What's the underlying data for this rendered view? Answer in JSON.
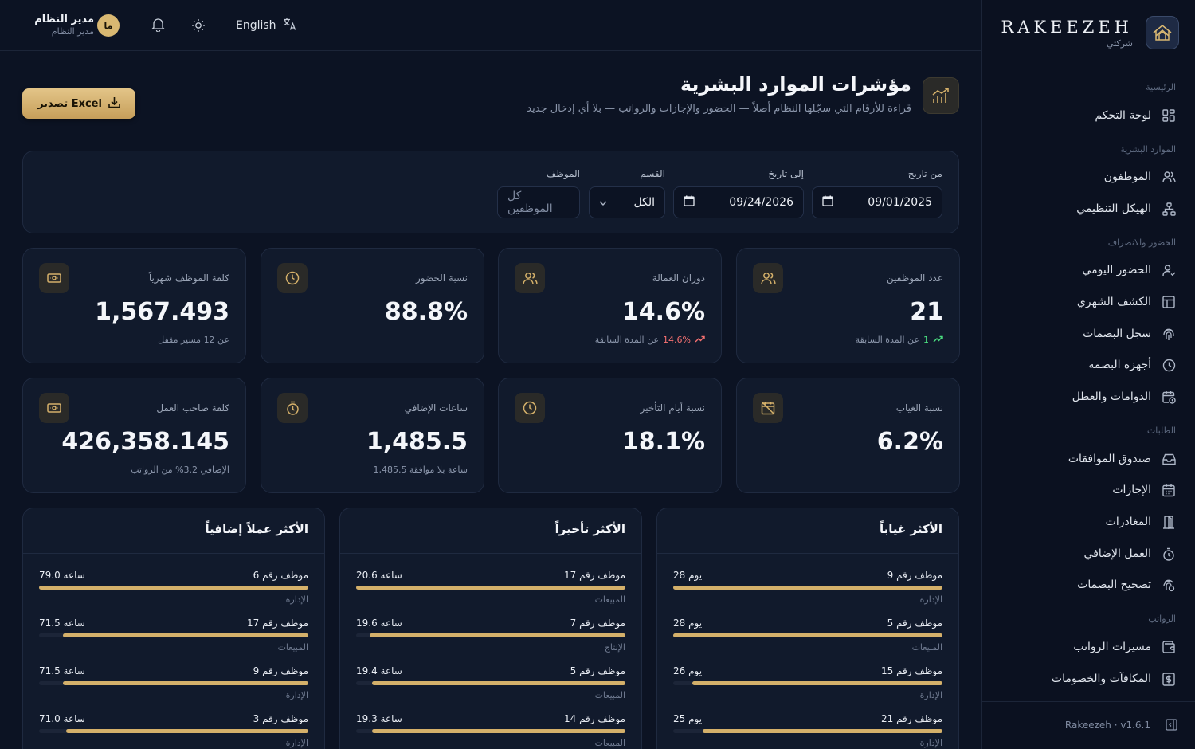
{
  "brand": {
    "name": "RAKEEZEH",
    "subtitle": "شركتي"
  },
  "sidebar": {
    "groups": [
      {
        "label": "الرئيسية"
      },
      {
        "label": "الموارد البشرية"
      },
      {
        "label": "الحضور والانصراف"
      },
      {
        "label": "الطلبات"
      },
      {
        "label": "الرواتب"
      }
    ],
    "items": [
      {
        "label": "لوحة التحكم",
        "icon": "dashboard-icon"
      },
      {
        "label": "الموظفون",
        "icon": "users-icon"
      },
      {
        "label": "الهيكل التنظيمي",
        "icon": "org-chart-icon"
      },
      {
        "label": "الحضور اليومي",
        "icon": "user-check-icon"
      },
      {
        "label": "الكشف الشهري",
        "icon": "table-icon"
      },
      {
        "label": "سجل البصمات",
        "icon": "fingerprint-icon"
      },
      {
        "label": "أجهزة البصمة",
        "icon": "clock-icon"
      },
      {
        "label": "الدوامات والعطل",
        "icon": "calendar-clock-icon"
      },
      {
        "label": "صندوق الموافقات",
        "icon": "inbox-icon"
      },
      {
        "label": "الإجازات",
        "icon": "calendar-icon"
      },
      {
        "label": "المغادرات",
        "icon": "door-icon"
      },
      {
        "label": "العمل الإضافي",
        "icon": "timer-icon"
      },
      {
        "label": "تصحيح البصمات",
        "icon": "fingerprint-fix-icon"
      },
      {
        "label": "مسيرات الرواتب",
        "icon": "wallet-icon"
      },
      {
        "label": "المكافآت والخصومات",
        "icon": "dollar-icon"
      }
    ],
    "version": "Rakeezeh · v1.6.1"
  },
  "topbar": {
    "language": "English",
    "user_name": "مدير النظام",
    "user_role": "مدير النظام",
    "avatar_initials": "ما"
  },
  "page": {
    "title": "مؤشرات الموارد البشرية",
    "subtitle": "قراءة للأرقام التي سجّلها النظام أصلاً — الحضور والإجازات والرواتب — بلا أي إدخال جديد",
    "export_label": "تصدير Excel"
  },
  "filters": {
    "from_label": "من تاريخ",
    "from_value": "09/01/2025",
    "to_label": "إلى تاريخ",
    "to_value": "09/24/2026",
    "dept_label": "القسم",
    "dept_value": "الكل",
    "emp_label": "الموظف",
    "emp_placeholder": "كل الموظفين"
  },
  "kpis": [
    {
      "label": "عدد الموظفين",
      "value": "21",
      "delta": "1",
      "note": "عن المدة السابقة",
      "trend": "up",
      "icon": "users-icon"
    },
    {
      "label": "دوران العمالة",
      "value": "14.6%",
      "delta": "14.6%",
      "note": "عن المدة السابقة",
      "trend": "down",
      "icon": "users-icon"
    },
    {
      "label": "نسبة الحضور",
      "value": "88.8%",
      "note": "",
      "icon": "clock-icon"
    },
    {
      "label": "كلفة الموظف شهرياً",
      "value": "1,567.493",
      "note": "عن 12 مسير مقفل",
      "icon": "money-icon"
    },
    {
      "label": "نسبة الغياب",
      "value": "6.2%",
      "note": "",
      "icon": "calendar-off-icon"
    },
    {
      "label": "نسبة أيام التأخير",
      "value": "18.1%",
      "note": "",
      "icon": "clock-icon"
    },
    {
      "label": "ساعات الإضافي",
      "value": "1,485.5",
      "note": "1,485.5 ساعة بلا موافقة",
      "icon": "timer-icon"
    },
    {
      "label": "كلفة صاحب العمل",
      "value": "426,358.145",
      "note": "الإضافي 3.2% من الرواتب",
      "icon": "money-icon"
    }
  ],
  "rankings": [
    {
      "title": "الأكثر غياباً",
      "rows": [
        {
          "name": "موظف رقم 9",
          "value": "28 يوم",
          "dept": "الإدارة",
          "pct": 1.0
        },
        {
          "name": "موظف رقم 5",
          "value": "28 يوم",
          "dept": "المبيعات",
          "pct": 1.0
        },
        {
          "name": "موظف رقم 15",
          "value": "26 يوم",
          "dept": "الإدارة",
          "pct": 0.93
        },
        {
          "name": "موظف رقم 21",
          "value": "25 يوم",
          "dept": "الإدارة",
          "pct": 0.89
        }
      ]
    },
    {
      "title": "الأكثر تأخيراً",
      "rows": [
        {
          "name": "موظف رقم 17",
          "value": "20.6 ساعة",
          "dept": "المبيعات",
          "pct": 1.0
        },
        {
          "name": "موظف رقم 7",
          "value": "19.6 ساعة",
          "dept": "الإنتاج",
          "pct": 0.95
        },
        {
          "name": "موظف رقم 5",
          "value": "19.4 ساعة",
          "dept": "المبيعات",
          "pct": 0.94
        },
        {
          "name": "موظف رقم 14",
          "value": "19.3 ساعة",
          "dept": "المبيعات",
          "pct": 0.94
        }
      ]
    },
    {
      "title": "الأكثر عملاً إضافياً",
      "rows": [
        {
          "name": "موظف رقم 6",
          "value": "79.0 ساعة",
          "dept": "الإدارة",
          "pct": 1.0
        },
        {
          "name": "موظف رقم 17",
          "value": "71.5 ساعة",
          "dept": "المبيعات",
          "pct": 0.91
        },
        {
          "name": "موظف رقم 9",
          "value": "71.5 ساعة",
          "dept": "الإدارة",
          "pct": 0.91
        },
        {
          "name": "موظف رقم 3",
          "value": "71.0 ساعة",
          "dept": "الإدارة",
          "pct": 0.9
        }
      ]
    }
  ],
  "colors": {
    "accent": "#d4b06a",
    "background": "#0c1323",
    "card": "#111a2c",
    "up": "#4ade80",
    "down": "#f87171"
  }
}
